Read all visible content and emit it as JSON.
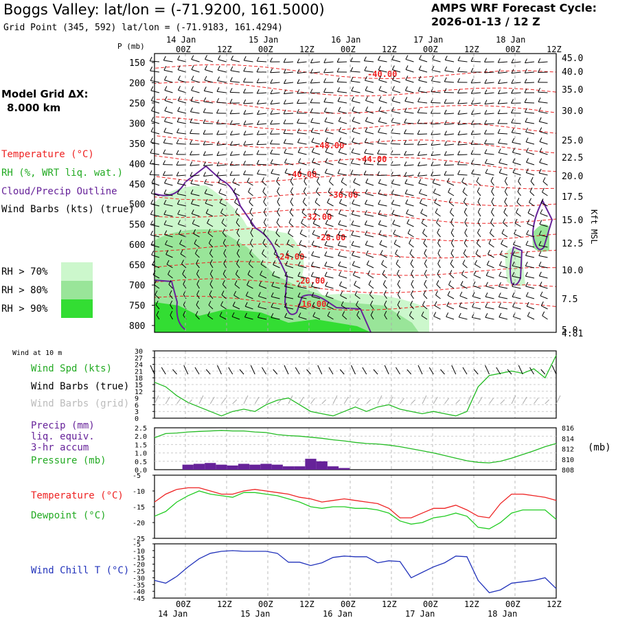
{
  "header": {
    "title": "Boggs Valley:  lat/lon = (-71.9200, 161.5000)",
    "subtitle": "Grid Point (345, 592) lat/lon = (-71.9183, 161.4294)",
    "cycle_line1": "AMPS WRF Forecast Cycle:",
    "cycle_line2": "2026-01-13 / 12  Z",
    "grid_label_1": "Model Grid ΔX:",
    "grid_label_2": "8.000 km"
  },
  "legend": {
    "temperature": "Temperature (°C)",
    "rh": "RH (%, WRT liq. wat.)",
    "cloud": "Cloud/Precip Outline",
    "wind": "Wind Barbs (kts) (true)",
    "rh70": "RH > 70%",
    "rh80": "RH > 80%",
    "rh90": "RH > 90%",
    "rh70_color": "#ccf7cc",
    "rh80_color": "#99e599",
    "rh90_color": "#33dd33"
  },
  "panel_labels": {
    "wind10m": "Wind at 10 m",
    "wind_spd": "Wind Spd (kts)",
    "wind_true": "Wind Barbs (true)",
    "wind_grid": "Wind Barbs (grid)",
    "precip_1": "Precip (mm)",
    "precip_2": "liq. equiv.",
    "precip_3": "3-hr accum",
    "pressure": "Pressure (mb)",
    "pressure_unit": "(mb)",
    "temperature": "Temperature (°C)",
    "dewpoint": "Dewpoint (°C)",
    "windchill": "Wind Chill T (°C)",
    "p_axis_label": "P (mb)",
    "kft_label": "Kft MSL"
  },
  "chart_data": [
    {
      "type": "line",
      "panel": "cross-section",
      "time_ticks": [
        "00Z",
        "12Z",
        "00Z",
        "12Z",
        "00Z",
        "12Z",
        "00Z",
        "12Z",
        "00Z",
        "12Z"
      ],
      "date_labels": [
        "14 Jan",
        "15 Jan",
        "16 Jan",
        "17 Jan",
        "18 Jan"
      ],
      "pressure_ticks": [
        150,
        200,
        250,
        300,
        350,
        400,
        450,
        500,
        550,
        600,
        650,
        700,
        750,
        800
      ],
      "kft_ticks": [
        "45.0",
        "40.0",
        "35.0",
        "30.0",
        "25.0",
        "22.5",
        "20.0",
        "17.5",
        "15.0",
        "12.5",
        "10.0",
        "7.5",
        "5.0",
        "4.81"
      ],
      "temperature_contour_labels": [
        "-40.00",
        "-48.00",
        "-44.00",
        "-40.00",
        "-36.00",
        "-32.00",
        "-28.00",
        "-24.00",
        "-20.00",
        "-16.00"
      ]
    },
    {
      "type": "line",
      "panel": "wind-10m",
      "y_ticks": [
        0,
        3,
        6,
        9,
        12,
        15,
        18,
        21,
        24,
        27,
        30
      ],
      "ylim": [
        0,
        30
      ],
      "series": [
        {
          "name": "Wind Spd (kts)",
          "color": "#22bb22",
          "values": [
            16,
            14,
            10,
            7,
            5,
            3,
            1,
            3,
            4,
            3,
            6,
            8,
            9,
            6,
            3,
            2,
            1,
            3,
            5,
            3,
            5,
            6,
            4,
            3,
            2,
            3,
            2,
            1,
            3,
            14,
            19,
            20,
            21,
            20,
            22,
            18,
            28
          ]
        }
      ]
    },
    {
      "type": "bar",
      "panel": "precip-pressure",
      "y_ticks_left": [
        "0.0",
        "0.5",
        "1.0",
        "1.5",
        "2.0",
        "2.5"
      ],
      "y_ticks_right": [
        808,
        810,
        812,
        814,
        816
      ],
      "precip_color": "#662299",
      "precip": [
        0,
        0,
        0,
        0.3,
        0.35,
        0.4,
        0.3,
        0.25,
        0.35,
        0.3,
        0.35,
        0.3,
        0.2,
        0.2,
        0.65,
        0.5,
        0.2,
        0.1,
        0,
        0,
        0,
        0,
        0,
        0,
        0,
        0,
        0,
        0,
        0,
        0,
        0,
        0,
        0,
        0,
        0,
        0,
        0
      ],
      "series": [
        {
          "name": "Pressure (mb)",
          "color": "#22bb22",
          "values": [
            814.1,
            814.9,
            815.0,
            815.2,
            815.3,
            815.4,
            815.5,
            815.4,
            815.4,
            815.2,
            815.1,
            814.7,
            814.5,
            814.4,
            814.2,
            814.0,
            813.7,
            813.5,
            813.2,
            813.0,
            812.9,
            812.7,
            812.4,
            812.0,
            811.6,
            811.2,
            810.7,
            810.2,
            809.7,
            809.4,
            809.3,
            809.6,
            810.2,
            810.9,
            811.6,
            812.4,
            813.0
          ]
        }
      ]
    },
    {
      "type": "line",
      "panel": "temperature",
      "y_ticks": [
        -25,
        -20,
        -15,
        -10,
        -5
      ],
      "ylim": [
        -25,
        -5
      ],
      "series": [
        {
          "name": "Temperature (°C)",
          "color": "#ee2222",
          "values": [
            -13.5,
            -11,
            -9.5,
            -9,
            -9,
            -10,
            -11,
            -11,
            -10,
            -9.5,
            -10,
            -10.5,
            -11,
            -12,
            -12.5,
            -13.5,
            -13,
            -12.5,
            -13,
            -13.5,
            -14,
            -15.5,
            -18.5,
            -18.5,
            -17,
            -15.5,
            -15.5,
            -14.5,
            -16,
            -18,
            -18.5,
            -14,
            -11,
            -11,
            -11.5,
            -12,
            -13
          ]
        },
        {
          "name": "Dewpoint (°C)",
          "color": "#22cc22",
          "values": [
            -18,
            -16.5,
            -13.5,
            -11.5,
            -10,
            -11,
            -11.5,
            -12,
            -10.5,
            -10.5,
            -11,
            -11.5,
            -12.5,
            -13.5,
            -15,
            -15.5,
            -15,
            -15,
            -15.5,
            -15.5,
            -16,
            -17,
            -19.5,
            -20.5,
            -20,
            -18.5,
            -18,
            -17,
            -18,
            -21.5,
            -22,
            -20,
            -17,
            -16,
            -16,
            -16,
            -19
          ]
        }
      ]
    },
    {
      "type": "line",
      "panel": "wind-chill",
      "y_ticks": [
        -45,
        -40,
        -35,
        -30,
        -25,
        -20,
        -15,
        -10,
        -5
      ],
      "ylim": [
        -45,
        -5
      ],
      "series": [
        {
          "name": "Wind Chill T (°C)",
          "color": "#2233bb",
          "values": [
            -32,
            -34,
            -29,
            -22,
            -16,
            -12,
            -10.5,
            -10,
            -10.5,
            -10.5,
            -10.5,
            -12,
            -18.5,
            -18.5,
            -21,
            -19,
            -15,
            -14,
            -14.5,
            -14.5,
            -19,
            -17.5,
            -18,
            -30,
            -26,
            -22,
            -19,
            -14,
            -14.5,
            -32,
            -41,
            -39,
            -34,
            -33,
            -32,
            -30,
            -38
          ]
        }
      ]
    }
  ]
}
